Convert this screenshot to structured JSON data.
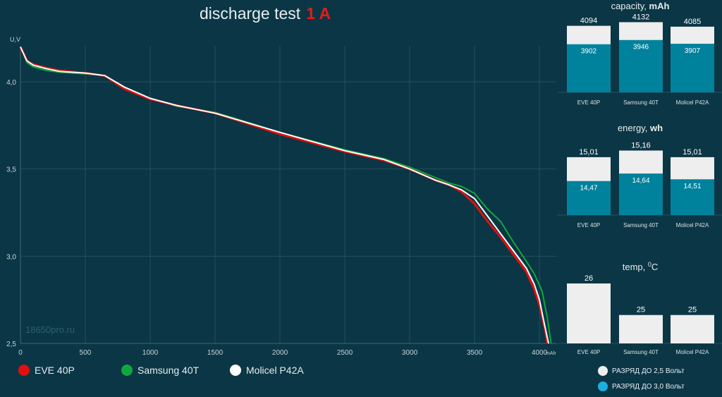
{
  "title": {
    "text": "discharge test",
    "accent": "1 A"
  },
  "watermark": "18650pro.ru",
  "colors": {
    "background": "#0b3645",
    "grid": "#24505e",
    "bar_full": "#eeeeee",
    "bar_lower": "#00829c",
    "eve": "#e01010",
    "samsung": "#10a83c",
    "molicel": "#ffffff",
    "legend_25": "#eeeeee",
    "legend_30": "#1cb0e0"
  },
  "legend": [
    {
      "label": "EVE 40P",
      "color": "#e01010"
    },
    {
      "label": "Samsung 40T",
      "color": "#10a83c"
    },
    {
      "label": "Molicel P42A",
      "color": "#ffffff"
    }
  ],
  "panel_legend": [
    {
      "label": "РАЗРЯД ДО 2,5 Вольт",
      "color": "#eeeeee"
    },
    {
      "label": "РАЗРЯД ДО 3,0 Вольт",
      "color": "#1cb0e0"
    }
  ],
  "chart_data": [
    {
      "type": "line",
      "xlabel": "mAh",
      "ylabel": "U,V",
      "xlim": [
        0,
        4130
      ],
      "ylim": [
        2.5,
        4.2
      ],
      "x_ticks": [
        "0",
        "500",
        "1000",
        "1500",
        "2000",
        "2500",
        "3000",
        "3500",
        "4000"
      ],
      "y_ticks": [
        "2,5",
        "3,0",
        "3,5",
        "4,0"
      ],
      "grid": true,
      "legend_position": "bottom",
      "series": [
        {
          "name": "EVE 40P",
          "color": "#e01010",
          "points": [
            [
              0,
              4.2
            ],
            [
              50,
              4.12
            ],
            [
              100,
              4.1
            ],
            [
              200,
              4.08
            ],
            [
              300,
              4.065
            ],
            [
              500,
              4.05
            ],
            [
              650,
              4.035
            ],
            [
              800,
              3.96
            ],
            [
              1000,
              3.9
            ],
            [
              1200,
              3.865
            ],
            [
              1500,
              3.82
            ],
            [
              2000,
              3.7
            ],
            [
              2500,
              3.6
            ],
            [
              2800,
              3.55
            ],
            [
              3000,
              3.5
            ],
            [
              3200,
              3.435
            ],
            [
              3300,
              3.41
            ],
            [
              3400,
              3.37
            ],
            [
              3500,
              3.3
            ],
            [
              3600,
              3.2
            ],
            [
              3700,
              3.11
            ],
            [
              3800,
              3.01
            ],
            [
              3900,
              2.91
            ],
            [
              3960,
              2.81
            ],
            [
              4000,
              2.72
            ],
            [
              4030,
              2.62
            ],
            [
              4045,
              2.57
            ],
            [
              4060,
              2.5
            ]
          ]
        },
        {
          "name": "Samsung 40T",
          "color": "#10a83c",
          "points": [
            [
              0,
              4.2
            ],
            [
              50,
              4.11
            ],
            [
              100,
              4.085
            ],
            [
              200,
              4.065
            ],
            [
              300,
              4.055
            ],
            [
              500,
              4.045
            ],
            [
              650,
              4.035
            ],
            [
              800,
              3.97
            ],
            [
              1000,
              3.905
            ],
            [
              1200,
              3.86
            ],
            [
              1500,
              3.825
            ],
            [
              2000,
              3.71
            ],
            [
              2500,
              3.61
            ],
            [
              2800,
              3.56
            ],
            [
              3000,
              3.51
            ],
            [
              3200,
              3.45
            ],
            [
              3300,
              3.42
            ],
            [
              3400,
              3.4
            ],
            [
              3500,
              3.36
            ],
            [
              3600,
              3.27
            ],
            [
              3700,
              3.2
            ],
            [
              3800,
              3.08
            ],
            [
              3900,
              2.97
            ],
            [
              3960,
              2.9
            ],
            [
              4020,
              2.8
            ],
            [
              4060,
              2.65
            ],
            [
              4090,
              2.5
            ]
          ]
        },
        {
          "name": "Molicel P42A",
          "color": "#ffffff",
          "points": [
            [
              0,
              4.2
            ],
            [
              50,
              4.12
            ],
            [
              100,
              4.095
            ],
            [
              200,
              4.075
            ],
            [
              300,
              4.06
            ],
            [
              500,
              4.05
            ],
            [
              650,
              4.035
            ],
            [
              800,
              3.97
            ],
            [
              1000,
              3.905
            ],
            [
              1200,
              3.865
            ],
            [
              1500,
              3.82
            ],
            [
              2000,
              3.71
            ],
            [
              2500,
              3.605
            ],
            [
              2800,
              3.555
            ],
            [
              3000,
              3.5
            ],
            [
              3200,
              3.435
            ],
            [
              3300,
              3.41
            ],
            [
              3400,
              3.38
            ],
            [
              3500,
              3.33
            ],
            [
              3600,
              3.23
            ],
            [
              3700,
              3.13
            ],
            [
              3800,
              3.03
            ],
            [
              3900,
              2.93
            ],
            [
              3960,
              2.84
            ],
            [
              4000,
              2.75
            ],
            [
              4030,
              2.64
            ],
            [
              4050,
              2.57
            ],
            [
              4070,
              2.5
            ]
          ]
        }
      ]
    },
    {
      "type": "bar",
      "title": "capacity, mAh",
      "title_plain": "capacity,",
      "title_unit": "mAh",
      "categories": [
        "EVE 40P",
        "Samsung 40T",
        "Molicel P42A"
      ],
      "series": [
        {
          "name": "РАЗРЯД ДО 2,5 Вольт",
          "values": [
            4094,
            4132,
            4085
          ],
          "labels": [
            "4094",
            "4132",
            "4085"
          ]
        },
        {
          "name": "РАЗРЯД ДО 3,0 Вольт",
          "values": [
            3902,
            3946,
            3907
          ],
          "labels": [
            "3902",
            "3946",
            "3907"
          ]
        }
      ],
      "ylim": [
        3400,
        4150
      ]
    },
    {
      "type": "bar",
      "title": "energy, wh",
      "title_plain": "energy,",
      "title_unit": "wh",
      "categories": [
        "EVE 40P",
        "Samsung 40T",
        "Molicel P42A"
      ],
      "series": [
        {
          "name": "РАЗРЯД ДО 2,5 Вольт",
          "values": [
            15.01,
            15.16,
            15.01
          ],
          "labels": [
            "15,01",
            "15,16",
            "15,01"
          ]
        },
        {
          "name": "РАЗРЯД ДО 3,0 Вольт",
          "values": [
            14.47,
            14.64,
            14.51
          ],
          "labels": [
            "14,47",
            "14,64",
            "14,51"
          ]
        }
      ],
      "ylim": [
        13.7,
        15.2
      ]
    },
    {
      "type": "bar",
      "title": "temp, 0C",
      "title_plain": "temp,",
      "title_unit": "C",
      "title_sup": "0",
      "categories": [
        "EVE 40P",
        "Samsung 40T",
        "Molicel P42A"
      ],
      "series": [
        {
          "name": "РАЗРЯД ДО 2,5 Вольт",
          "values": [
            26,
            25,
            25
          ],
          "labels": [
            "26",
            "25",
            "25"
          ]
        }
      ],
      "ylim": [
        24.1,
        26
      ]
    }
  ]
}
